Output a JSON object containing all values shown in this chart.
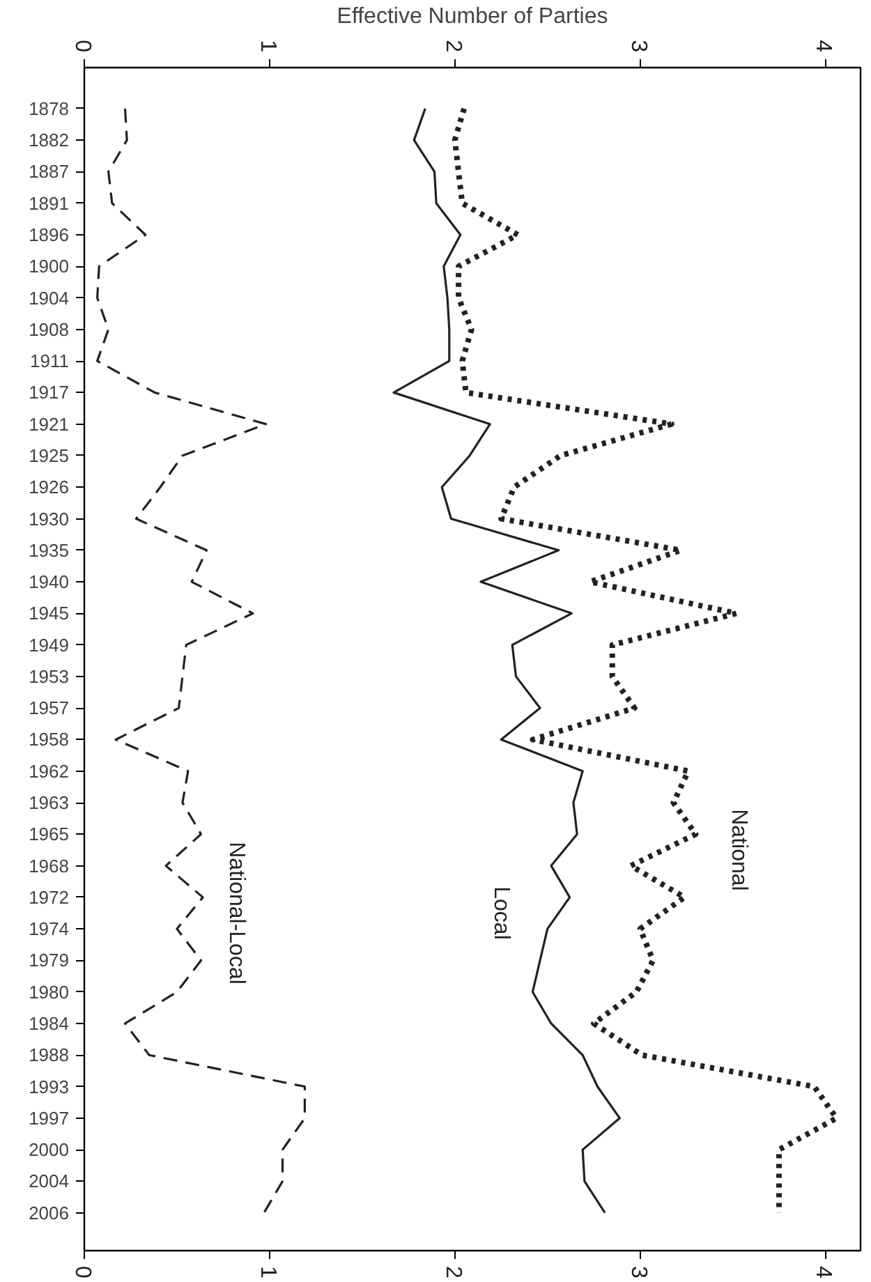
{
  "chart_data": {
    "type": "line",
    "orientation": "horizontal",
    "x2label": "Effective Number of Parties",
    "categories": [
      "1878",
      "1882",
      "1887",
      "1891",
      "1896",
      "1900",
      "1904",
      "1908",
      "1911",
      "1917",
      "1921",
      "1925",
      "1926",
      "1930",
      "1935",
      "1940",
      "1945",
      "1949",
      "1953",
      "1957",
      "1958",
      "1962",
      "1963",
      "1965",
      "1968",
      "1972",
      "1974",
      "1979",
      "1980",
      "1984",
      "1988",
      "1993",
      "1997",
      "2000",
      "2004",
      "2006"
    ],
    "series": [
      {
        "name": "National",
        "color": "#222222",
        "line_style": "dotted",
        "values": [
          2.05,
          2.0,
          2.02,
          2.04,
          2.34,
          2.02,
          2.02,
          2.09,
          2.04,
          2.06,
          3.17,
          2.57,
          2.32,
          2.25,
          3.22,
          2.73,
          3.52,
          2.85,
          2.85,
          2.97,
          2.42,
          3.26,
          3.18,
          3.3,
          2.95,
          3.24,
          3.0,
          3.07,
          2.98,
          2.75,
          3.01,
          3.94,
          4.06,
          3.75,
          3.75,
          3.75
        ]
      },
      {
        "name": "Local",
        "color": "#222222",
        "line_style": "solid",
        "values": [
          1.84,
          1.78,
          1.89,
          1.9,
          2.03,
          1.94,
          1.96,
          1.97,
          1.97,
          1.67,
          2.19,
          2.08,
          1.93,
          1.98,
          2.56,
          2.14,
          2.63,
          2.31,
          2.33,
          2.46,
          2.25,
          2.69,
          2.64,
          2.66,
          2.52,
          2.62,
          2.5,
          2.46,
          2.42,
          2.52,
          2.69,
          2.77,
          2.89,
          2.69,
          2.7,
          2.81
        ]
      },
      {
        "name": "National-Local",
        "color": "#222222",
        "line_style": "dashed",
        "values": [
          0.22,
          0.23,
          0.13,
          0.15,
          0.33,
          0.08,
          0.07,
          0.13,
          0.07,
          0.38,
          0.98,
          0.53,
          0.41,
          0.28,
          0.66,
          0.58,
          0.91,
          0.55,
          0.53,
          0.51,
          0.17,
          0.56,
          0.53,
          0.63,
          0.44,
          0.64,
          0.5,
          0.63,
          0.5,
          0.22,
          0.35,
          1.19,
          1.19,
          1.07,
          1.07,
          0.97
        ]
      }
    ],
    "xlim": [
      0,
      4.19
    ],
    "xticks": [
      0,
      1,
      2,
      3,
      4
    ],
    "x2lim": [
      0,
      4.19
    ],
    "x2ticks": [
      0,
      1,
      2,
      3,
      4
    ],
    "grid": false,
    "legend": false
  }
}
